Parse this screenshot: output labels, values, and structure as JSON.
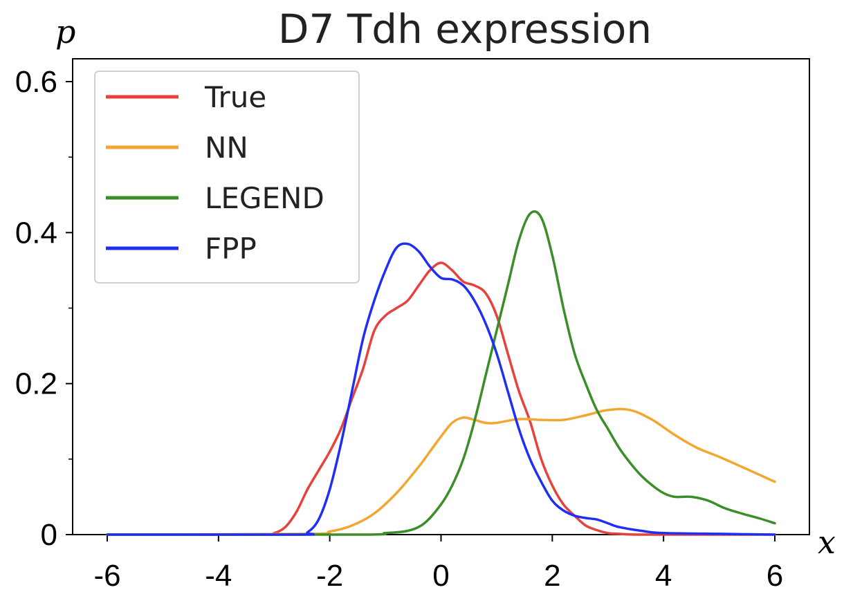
{
  "chart_data": {
    "type": "line",
    "title": "D7 Tdh expression",
    "xlabel": "x",
    "ylabel": "p",
    "xlim": [
      -6,
      6
    ],
    "ylim": [
      0,
      0.6
    ],
    "grid": false,
    "legend_position": "top-left",
    "x_ticks": [
      -6,
      -4,
      -2,
      0,
      2,
      4,
      6
    ],
    "x_tick_labels": [
      "-6",
      "-4",
      "-2",
      "0",
      "2",
      "4",
      "6"
    ],
    "y_ticks": [
      0,
      0.2,
      0.4,
      0.6
    ],
    "y_tick_labels": [
      "0",
      "0.2",
      "0.4",
      "0.6"
    ],
    "series": [
      {
        "name": "True",
        "color": "#e8413b",
        "x": [
          -6,
          -3.2,
          -3,
          -2.8,
          -2.6,
          -2.4,
          -2.2,
          -2,
          -1.8,
          -1.6,
          -1.4,
          -1.2,
          -1,
          -0.8,
          -0.6,
          -0.4,
          -0.2,
          0,
          0.2,
          0.4,
          0.6,
          0.8,
          1,
          1.2,
          1.4,
          1.6,
          1.8,
          2,
          2.2,
          2.4,
          2.6,
          2.8,
          3,
          3.2,
          3.5,
          4,
          5,
          6
        ],
        "y": [
          0,
          0.0,
          0.002,
          0.01,
          0.03,
          0.06,
          0.085,
          0.11,
          0.14,
          0.18,
          0.22,
          0.27,
          0.29,
          0.3,
          0.31,
          0.33,
          0.35,
          0.36,
          0.35,
          0.335,
          0.33,
          0.32,
          0.29,
          0.24,
          0.19,
          0.15,
          0.1,
          0.065,
          0.04,
          0.025,
          0.012,
          0.006,
          0.002,
          0.001,
          0,
          0,
          0,
          0
        ]
      },
      {
        "name": "NN",
        "color": "#f3a630",
        "x": [
          -6,
          -2.4,
          -2,
          -1.6,
          -1.2,
          -0.8,
          -0.4,
          -0.2,
          0,
          0.2,
          0.4,
          0.6,
          0.8,
          1,
          1.4,
          1.8,
          2.2,
          2.6,
          3,
          3.4,
          3.8,
          4.2,
          4.6,
          5,
          5.4,
          6
        ],
        "y": [
          0,
          0.001,
          0.004,
          0.012,
          0.028,
          0.055,
          0.09,
          0.11,
          0.13,
          0.148,
          0.155,
          0.152,
          0.148,
          0.148,
          0.153,
          0.152,
          0.152,
          0.158,
          0.165,
          0.165,
          0.152,
          0.132,
          0.115,
          0.103,
          0.09,
          0.07
        ]
      },
      {
        "name": "LEGEND",
        "color": "#3a8e2a",
        "x": [
          -6,
          -1.5,
          -1,
          -0.6,
          -0.3,
          0,
          0.2,
          0.4,
          0.6,
          0.8,
          1,
          1.2,
          1.4,
          1.6,
          1.8,
          2,
          2.2,
          2.4,
          2.6,
          2.8,
          3,
          3.2,
          3.4,
          3.6,
          3.8,
          4,
          4.2,
          4.5,
          4.8,
          5.1,
          5.4,
          5.7,
          6
        ],
        "y": [
          0,
          0.0,
          0.002,
          0.005,
          0.015,
          0.04,
          0.065,
          0.1,
          0.15,
          0.21,
          0.27,
          0.33,
          0.39,
          0.425,
          0.42,
          0.37,
          0.3,
          0.24,
          0.2,
          0.165,
          0.14,
          0.115,
          0.095,
          0.078,
          0.065,
          0.055,
          0.05,
          0.05,
          0.045,
          0.035,
          0.028,
          0.022,
          0.015
        ]
      },
      {
        "name": "FPP",
        "color": "#1f2ef5",
        "x": [
          -6,
          -2.6,
          -2.4,
          -2.2,
          -2,
          -1.8,
          -1.6,
          -1.4,
          -1.2,
          -1,
          -0.8,
          -0.6,
          -0.4,
          -0.2,
          0,
          0.2,
          0.4,
          0.6,
          0.8,
          1,
          1.2,
          1.4,
          1.6,
          1.8,
          2,
          2.2,
          2.4,
          2.6,
          2.8,
          3,
          3.2,
          3.6,
          4,
          5,
          6
        ],
        "y": [
          0,
          0.0,
          0.003,
          0.02,
          0.06,
          0.12,
          0.19,
          0.26,
          0.31,
          0.35,
          0.38,
          0.385,
          0.375,
          0.355,
          0.34,
          0.338,
          0.33,
          0.31,
          0.28,
          0.24,
          0.19,
          0.14,
          0.1,
          0.07,
          0.045,
          0.032,
          0.025,
          0.022,
          0.02,
          0.015,
          0.01,
          0.005,
          0.002,
          0.001,
          0
        ]
      }
    ]
  }
}
